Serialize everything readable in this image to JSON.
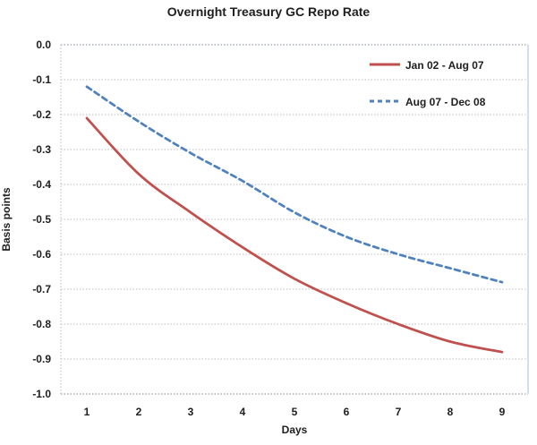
{
  "chart_data": {
    "type": "line",
    "title": "Overnight Treasury GC Repo Rate",
    "xlabel": "Days",
    "ylabel": "Basis points",
    "categories": [
      1,
      2,
      3,
      4,
      5,
      6,
      7,
      8,
      9
    ],
    "ylim": [
      -1.0,
      0.0
    ],
    "y_ticks": [
      {
        "label": "0.0",
        "value": 0.0
      },
      {
        "label": "-0.1",
        "value": -0.1
      },
      {
        "label": "-0.2",
        "value": -0.2
      },
      {
        "label": "-0.3",
        "value": -0.3
      },
      {
        "label": "-0.4",
        "value": -0.4
      },
      {
        "label": "-0.5",
        "value": -0.5
      },
      {
        "label": "-0.6",
        "value": -0.6
      },
      {
        "label": "-0.7",
        "value": -0.7
      },
      {
        "label": "-0.8",
        "value": -0.8
      },
      {
        "label": "-0.9",
        "value": -0.9
      },
      {
        "label": "-1.0",
        "value": -1.0
      }
    ],
    "grid": "horizontal-dotted",
    "legend_position": "inside-top-right",
    "series": [
      {
        "name": "Jan 02 - Aug 07",
        "color": "#C0504D",
        "line_style": "solid",
        "values": [
          -0.21,
          -0.37,
          -0.48,
          -0.58,
          -0.67,
          -0.74,
          -0.8,
          -0.85,
          -0.88
        ]
      },
      {
        "name": "Aug 07 - Dec 08",
        "color": "#4F81BD",
        "line_style": "dashed",
        "values": [
          -0.12,
          -0.22,
          -0.31,
          -0.39,
          -0.48,
          -0.55,
          -0.6,
          -0.64,
          -0.68
        ]
      }
    ]
  },
  "colors": {
    "gridline": "#BDBDBD",
    "boundary_line": "#A8B0BC",
    "plot_border_right": "#C9D7EA",
    "axis_text": "#202020",
    "background": "#FFFFFF"
  }
}
